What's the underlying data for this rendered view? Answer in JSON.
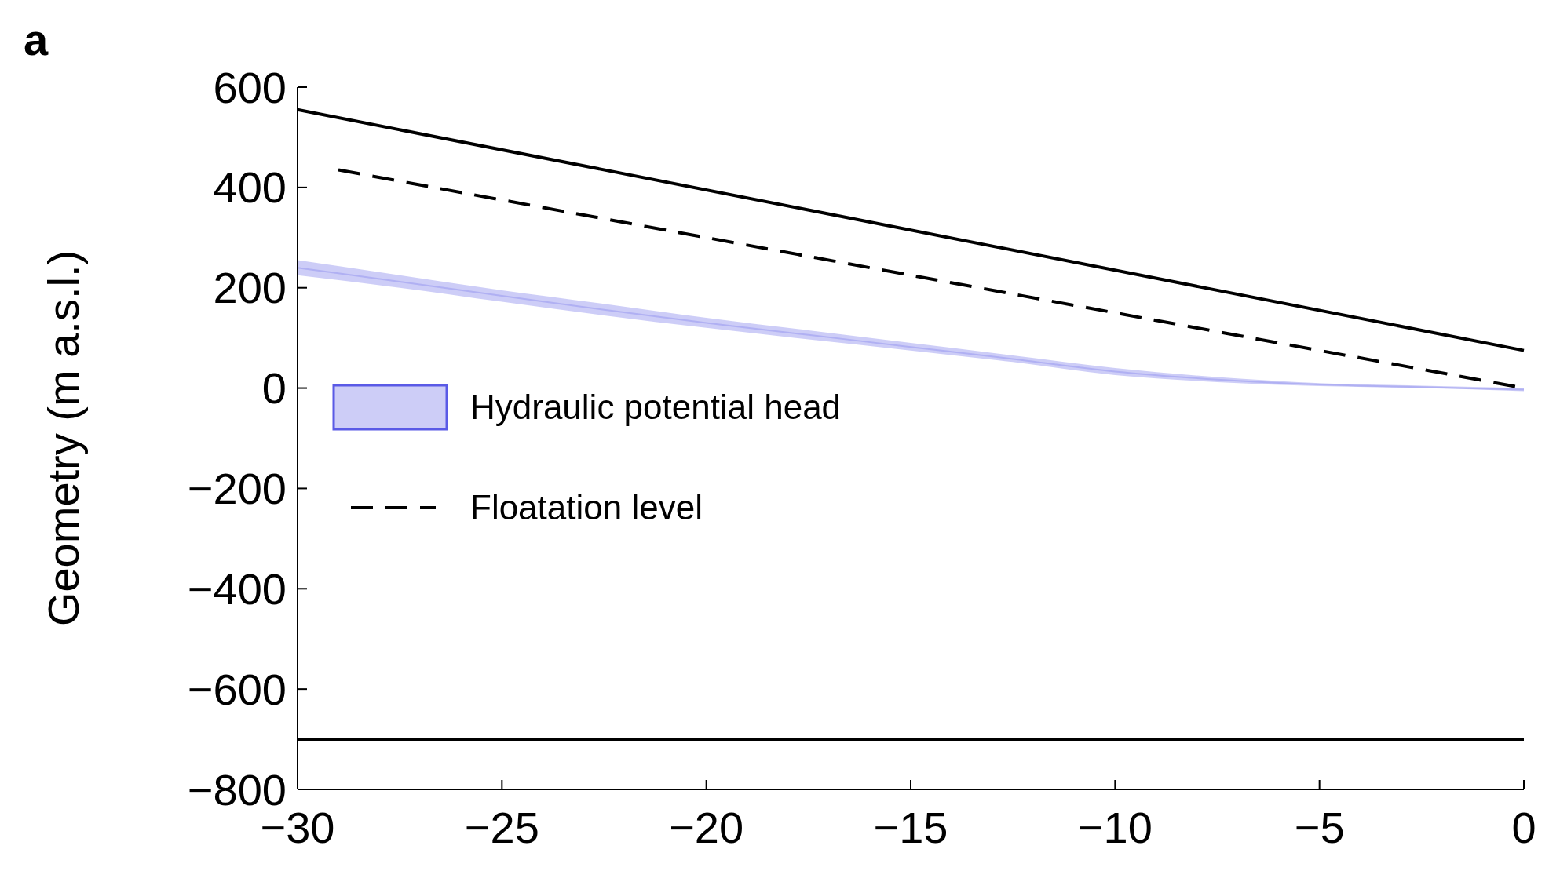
{
  "chart_data": {
    "type": "line",
    "ylabel": "Geometry (m a.s.l.)",
    "annotations": [
      "a"
    ],
    "xlim": [
      -30,
      0
    ],
    "ylim": [
      -800,
      600
    ],
    "xticks": [
      {
        "value": -30,
        "label": "−30"
      },
      {
        "value": -25,
        "label": "−25"
      },
      {
        "value": -20,
        "label": "−20"
      },
      {
        "value": -15,
        "label": "−15"
      },
      {
        "value": -10,
        "label": "−10"
      },
      {
        "value": -5,
        "label": "−5"
      },
      0
    ],
    "yticks": [
      {
        "value": -800,
        "label": "−800"
      },
      {
        "value": -600,
        "label": "−600"
      },
      {
        "value": -400,
        "label": "−400"
      },
      {
        "value": -200,
        "label": "−200"
      },
      0,
      200,
      400,
      600
    ],
    "grid": false,
    "legend": "left",
    "series": [
      {
        "name": "Hydraulic potential head",
        "color": "#5a5ae6",
        "x": [
          -30,
          -27.5,
          -25,
          -22.5,
          -20,
          -17.5,
          -15,
          -12.5,
          -10,
          -7.5,
          -5,
          -2.5,
          0
        ],
        "values": [
          240,
          212,
          184,
          156,
          130,
          106,
          82,
          58,
          33,
          17,
          7,
          2,
          -3
        ],
        "upper": [
          255,
          225,
          195,
          168,
          140,
          115,
          90,
          65,
          40,
          22,
          10,
          5,
          0
        ],
        "lower": [
          225,
          200,
          172,
          145,
          120,
          97,
          75,
          52,
          26,
          12,
          4,
          0,
          -6
        ]
      },
      {
        "color": "#000000",
        "x": [
          -30,
          0
        ],
        "values": [
          555,
          75
        ],
        "line_style": "solid"
      },
      {
        "name": "Floatation level",
        "color": "#000000",
        "x": [
          -29,
          0
        ],
        "values": [
          435,
          0
        ],
        "line_style": "dashed"
      },
      {
        "color": "#000000",
        "x": [
          -30,
          0
        ],
        "values": [
          -700,
          -700
        ],
        "line_style": "solid"
      }
    ]
  }
}
